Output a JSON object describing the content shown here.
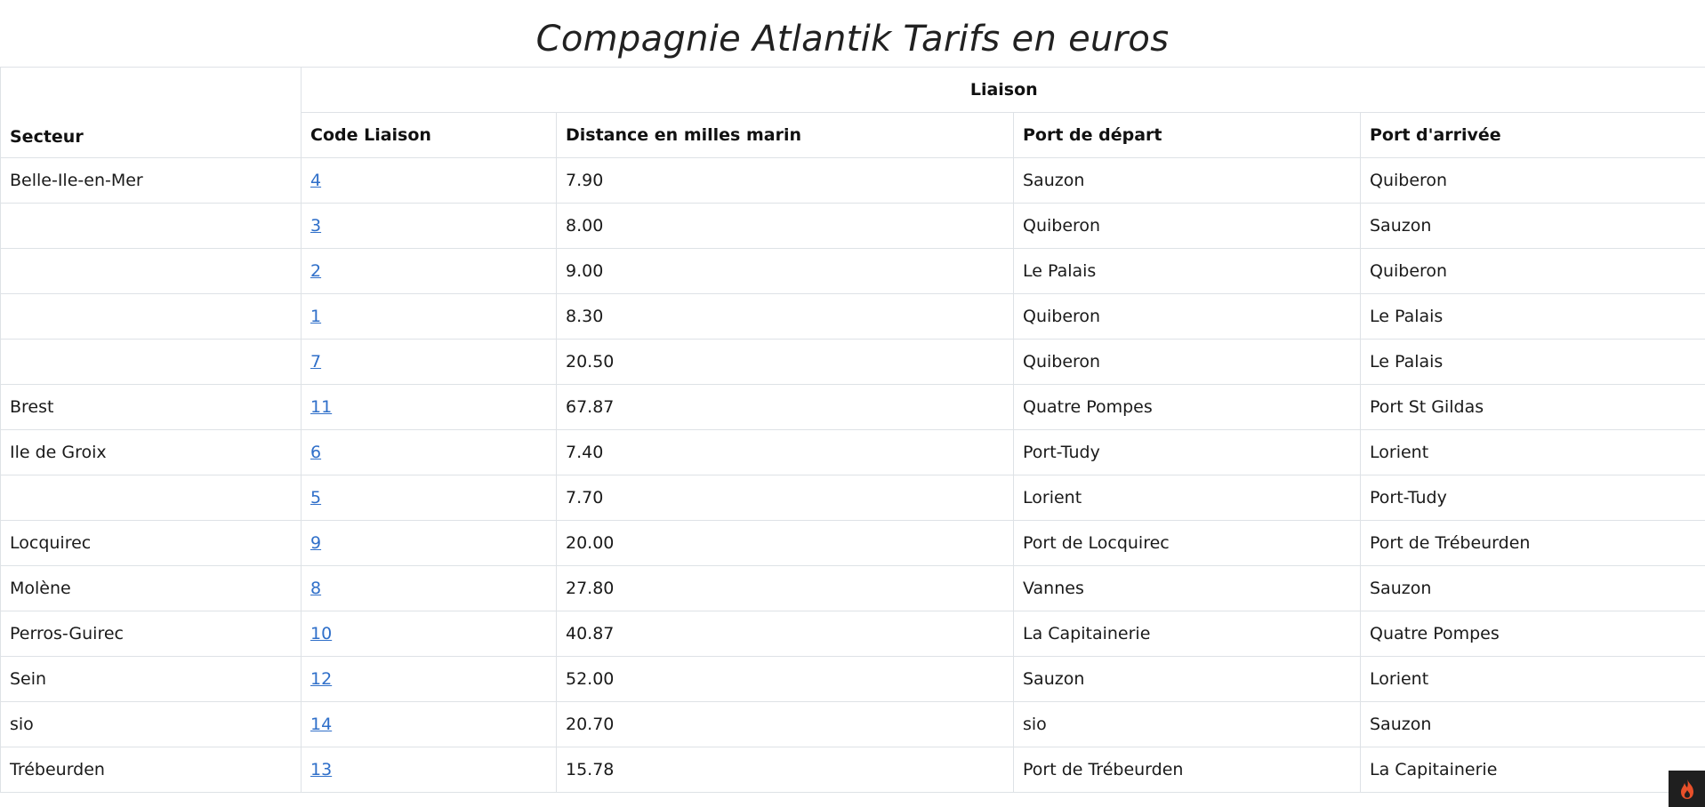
{
  "page": {
    "title": "Compagnie Atlantik Tarifs en euros"
  },
  "table": {
    "group_header": "Liaison",
    "headers": {
      "secteur": "Secteur",
      "code": "Code Liaison",
      "distance": "Distance en milles marin",
      "depart": "Port de départ",
      "arrivee": "Port d'arrivée"
    },
    "rows": [
      {
        "secteur": "Belle-Ile-en-Mer",
        "code": "4",
        "distance": "7.90",
        "depart": "Sauzon",
        "arrivee": "Quiberon"
      },
      {
        "secteur": "",
        "code": "3",
        "distance": "8.00",
        "depart": "Quiberon",
        "arrivee": "Sauzon"
      },
      {
        "secteur": "",
        "code": "2",
        "distance": "9.00",
        "depart": "Le Palais",
        "arrivee": "Quiberon"
      },
      {
        "secteur": "",
        "code": "1",
        "distance": "8.30",
        "depart": "Quiberon",
        "arrivee": "Le Palais"
      },
      {
        "secteur": "",
        "code": "7",
        "distance": "20.50",
        "depart": "Quiberon",
        "arrivee": "Le Palais"
      },
      {
        "secteur": "Brest",
        "code": "11",
        "distance": "67.87",
        "depart": "Quatre Pompes",
        "arrivee": "Port St Gildas"
      },
      {
        "secteur": "Ile de Groix",
        "code": "6",
        "distance": "7.40",
        "depart": "Port-Tudy",
        "arrivee": "Lorient"
      },
      {
        "secteur": "",
        "code": "5",
        "distance": "7.70",
        "depart": "Lorient",
        "arrivee": "Port-Tudy"
      },
      {
        "secteur": "Locquirec",
        "code": "9",
        "distance": "20.00",
        "depart": "Port de Locquirec",
        "arrivee": "Port de Trébeurden"
      },
      {
        "secteur": "Molène",
        "code": "8",
        "distance": "27.80",
        "depart": "Vannes",
        "arrivee": "Sauzon"
      },
      {
        "secteur": "Perros-Guirec",
        "code": "10",
        "distance": "40.87",
        "depart": "La Capitainerie",
        "arrivee": "Quatre Pompes"
      },
      {
        "secteur": "Sein",
        "code": "12",
        "distance": "52.00",
        "depart": "Sauzon",
        "arrivee": "Lorient"
      },
      {
        "secteur": "sio",
        "code": "14",
        "distance": "20.70",
        "depart": "sio",
        "arrivee": "Sauzon"
      },
      {
        "secteur": "Trébeurden",
        "code": "13",
        "distance": "15.78",
        "depart": "Port de Trébeurden",
        "arrivee": "La Capitainerie"
      }
    ]
  },
  "badge": {
    "icon": "flame-icon",
    "color": "#e8502a"
  }
}
